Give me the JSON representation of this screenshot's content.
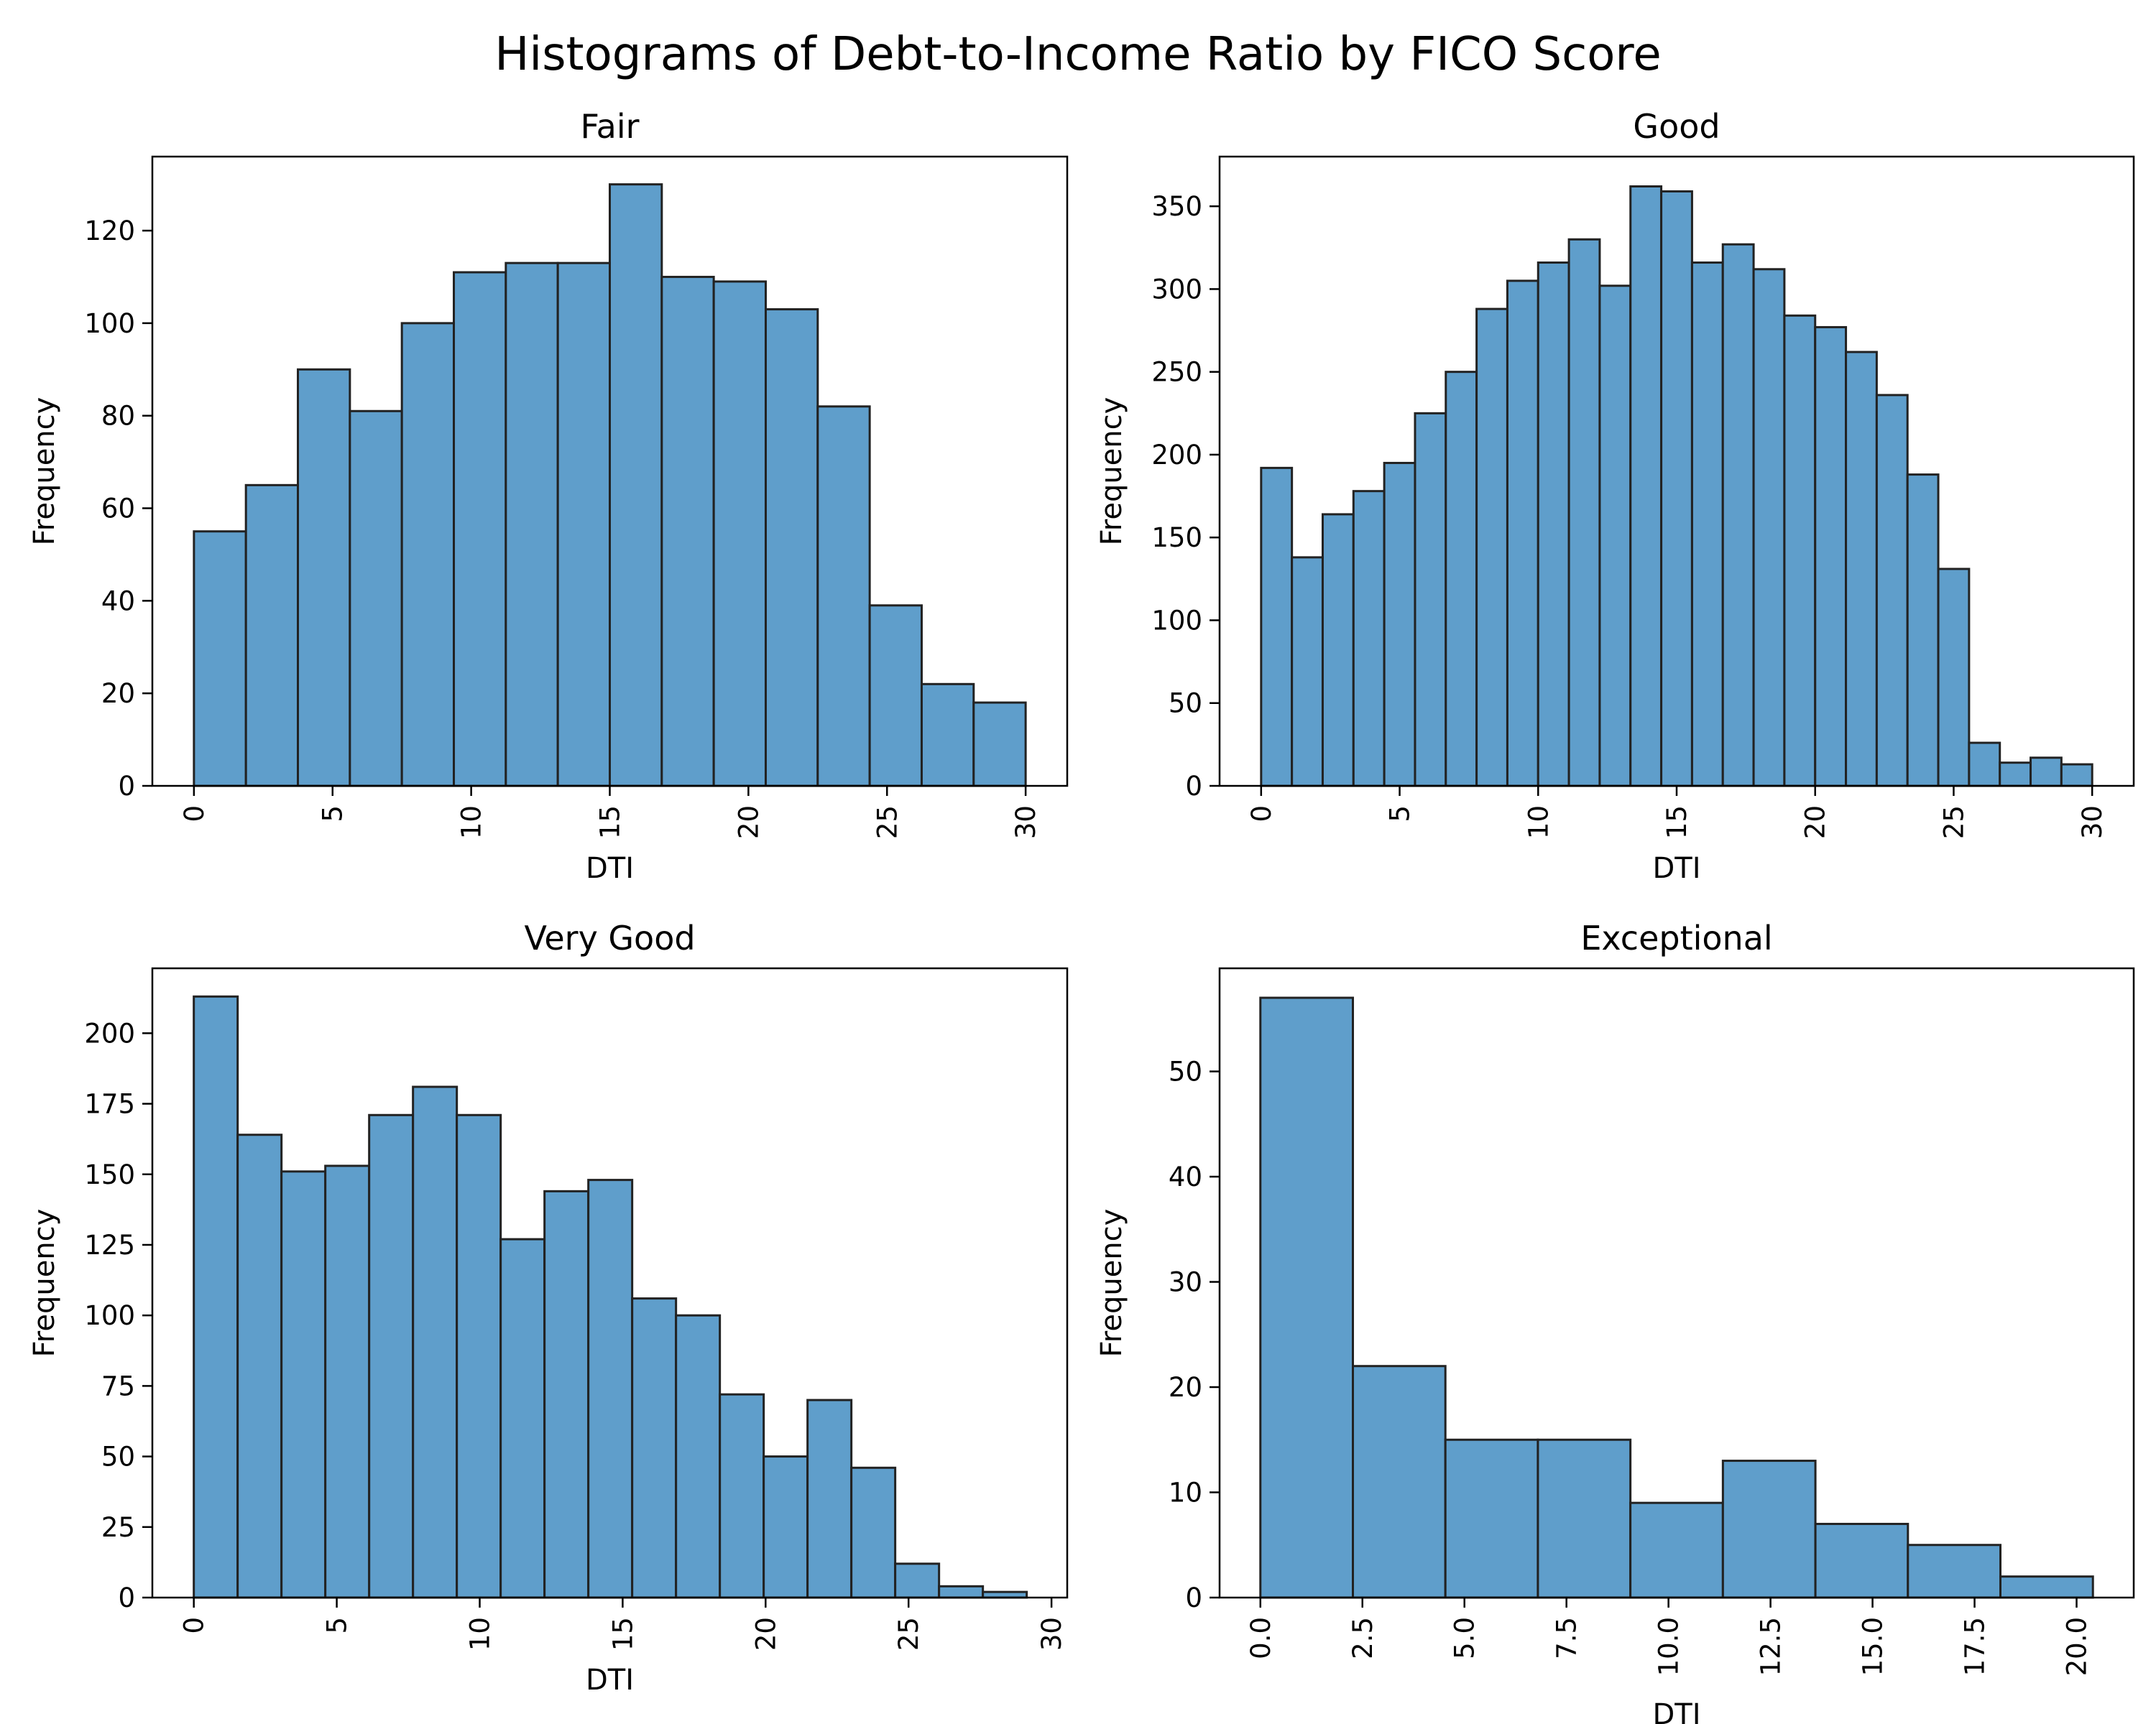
{
  "figure": {
    "title": "Histograms of Debt-to-Income Ratio by FICO Score",
    "bar_color": "#5f9ecb",
    "edge_color": "#222222"
  },
  "chart_data": [
    {
      "type": "bar",
      "title": "Fair",
      "xlabel": "DTI",
      "ylabel": "Frequency",
      "xlim": [
        -1.5,
        31.5
      ],
      "ylim": [
        0,
        136
      ],
      "bin_edges": [
        0,
        1.875,
        3.75,
        5.625,
        7.5,
        9.375,
        11.25,
        13.125,
        15,
        16.875,
        18.75,
        20.625,
        22.5,
        24.375,
        26.25,
        28.125,
        30
      ],
      "values": [
        55,
        65,
        90,
        81,
        100,
        111,
        113,
        113,
        130,
        110,
        109,
        103,
        82,
        39,
        22,
        18
      ],
      "xticks": [
        0,
        5,
        10,
        15,
        20,
        25,
        30
      ],
      "xtick_labels": [
        "0",
        "5",
        "10",
        "15",
        "20",
        "25",
        "30"
      ],
      "yticks": [
        0,
        20,
        40,
        60,
        80,
        100,
        120
      ],
      "ytick_labels": [
        "0",
        "20",
        "40",
        "60",
        "80",
        "100",
        "120"
      ]
    },
    {
      "type": "bar",
      "title": "Good",
      "xlabel": "DTI",
      "ylabel": "Frequency",
      "xlim": [
        -1.5,
        31.5
      ],
      "ylim": [
        0,
        380
      ],
      "bin_edges": [
        0,
        1.1111,
        2.2222,
        3.3333,
        4.4444,
        5.5556,
        6.6667,
        7.7778,
        8.8889,
        10,
        11.1111,
        12.2222,
        13.3333,
        14.4444,
        15.5556,
        16.6667,
        17.7778,
        18.8889,
        20,
        21.1111,
        22.2222,
        23.3333,
        24.4444,
        25.5556,
        26.6667,
        27.7778,
        28.8889,
        30
      ],
      "values": [
        192,
        138,
        164,
        178,
        195,
        225,
        250,
        288,
        305,
        316,
        330,
        302,
        362,
        359,
        316,
        327,
        312,
        284,
        277,
        262,
        236,
        188,
        131,
        26,
        14,
        17,
        13
      ],
      "xticks": [
        0,
        5,
        10,
        15,
        20,
        25,
        30
      ],
      "xtick_labels": [
        "0",
        "5",
        "10",
        "15",
        "20",
        "25",
        "30"
      ],
      "yticks": [
        0,
        50,
        100,
        150,
        200,
        250,
        300,
        350
      ],
      "ytick_labels": [
        "0",
        "50",
        "100",
        "150",
        "200",
        "250",
        "300",
        "350"
      ]
    },
    {
      "type": "bar",
      "title": "Very Good",
      "xlabel": "DTI",
      "ylabel": "Frequency",
      "xlim": [
        -1.45,
        30.55
      ],
      "ylim": [
        0,
        223
      ],
      "bin_edges": [
        0,
        1.5333,
        3.0667,
        4.6,
        6.1333,
        7.6667,
        9.2,
        10.7333,
        12.2667,
        13.8,
        15.3333,
        16.8667,
        18.4,
        19.9333,
        21.4667,
        23,
        24.5333,
        26.0667,
        27.6,
        29.1333
      ],
      "values": [
        213,
        164,
        151,
        153,
        171,
        181,
        171,
        127,
        144,
        148,
        106,
        100,
        72,
        50,
        70,
        46,
        12,
        4,
        2
      ],
      "xticks": [
        0,
        5,
        10,
        15,
        20,
        25,
        30
      ],
      "xtick_labels": [
        "0",
        "5",
        "10",
        "15",
        "20",
        "25",
        "30"
      ],
      "yticks": [
        0,
        25,
        50,
        75,
        100,
        125,
        150,
        175,
        200
      ],
      "ytick_labels": [
        "0",
        "25",
        "50",
        "75",
        "100",
        "125",
        "150",
        "175",
        "200"
      ]
    },
    {
      "type": "bar",
      "title": "Exceptional",
      "xlabel": "DTI",
      "ylabel": "Frequency",
      "xlim": [
        -1.0,
        21.4
      ],
      "ylim": [
        0,
        59.8
      ],
      "bin_edges": [
        0,
        2.2667,
        4.5333,
        6.8,
        9.0667,
        11.3333,
        13.6,
        15.8667,
        18.1333,
        20.4
      ],
      "values": [
        57,
        22,
        15,
        15,
        9,
        13,
        7,
        5,
        2
      ],
      "xticks": [
        0,
        2.5,
        5,
        7.5,
        10,
        12.5,
        15,
        17.5,
        20
      ],
      "xtick_labels": [
        "0.0",
        "2.5",
        "5.0",
        "7.5",
        "10.0",
        "12.5",
        "15.0",
        "17.5",
        "20.0"
      ],
      "yticks": [
        0,
        10,
        20,
        30,
        40,
        50
      ],
      "ytick_labels": [
        "0",
        "10",
        "20",
        "30",
        "40",
        "50"
      ]
    }
  ]
}
